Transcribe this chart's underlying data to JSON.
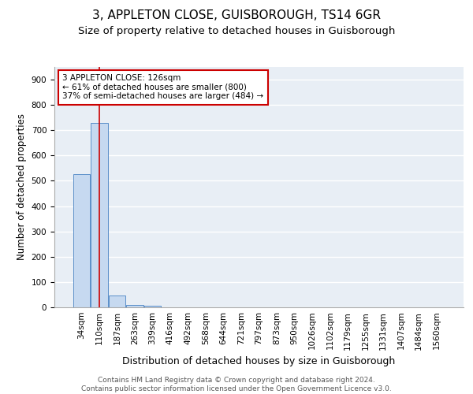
{
  "title1": "3, APPLETON CLOSE, GUISBOROUGH, TS14 6GR",
  "title2": "Size of property relative to detached houses in Guisborough",
  "xlabel": "Distribution of detached houses by size in Guisborough",
  "ylabel": "Number of detached properties",
  "footer": "Contains HM Land Registry data © Crown copyright and database right 2024.\nContains public sector information licensed under the Open Government Licence v3.0.",
  "categories": [
    "34sqm",
    "110sqm",
    "187sqm",
    "263sqm",
    "339sqm",
    "416sqm",
    "492sqm",
    "568sqm",
    "644sqm",
    "721sqm",
    "797sqm",
    "873sqm",
    "950sqm",
    "1026sqm",
    "1102sqm",
    "1179sqm",
    "1255sqm",
    "1331sqm",
    "1407sqm",
    "1484sqm",
    "1560sqm"
  ],
  "values": [
    527,
    728,
    46,
    10,
    7,
    0,
    0,
    0,
    0,
    0,
    0,
    0,
    0,
    0,
    0,
    0,
    0,
    0,
    0,
    0,
    0
  ],
  "bar_color": "#c6d9f0",
  "bar_edge_color": "#5b8fc9",
  "vline_x": 1,
  "vline_color": "#cc0000",
  "annotation_text": "3 APPLETON CLOSE: 126sqm\n← 61% of detached houses are smaller (800)\n37% of semi-detached houses are larger (484) →",
  "annotation_box_color": "#ffffff",
  "annotation_box_edge": "#cc0000",
  "ylim": [
    0,
    950
  ],
  "yticks": [
    0,
    100,
    200,
    300,
    400,
    500,
    600,
    700,
    800,
    900
  ],
  "background_color": "#e8eef5",
  "grid_color": "#ffffff",
  "title1_fontsize": 11,
  "title2_fontsize": 9.5,
  "xlabel_fontsize": 9,
  "ylabel_fontsize": 8.5,
  "tick_fontsize": 7.5,
  "footer_fontsize": 6.5,
  "ann_fontsize": 7.5
}
